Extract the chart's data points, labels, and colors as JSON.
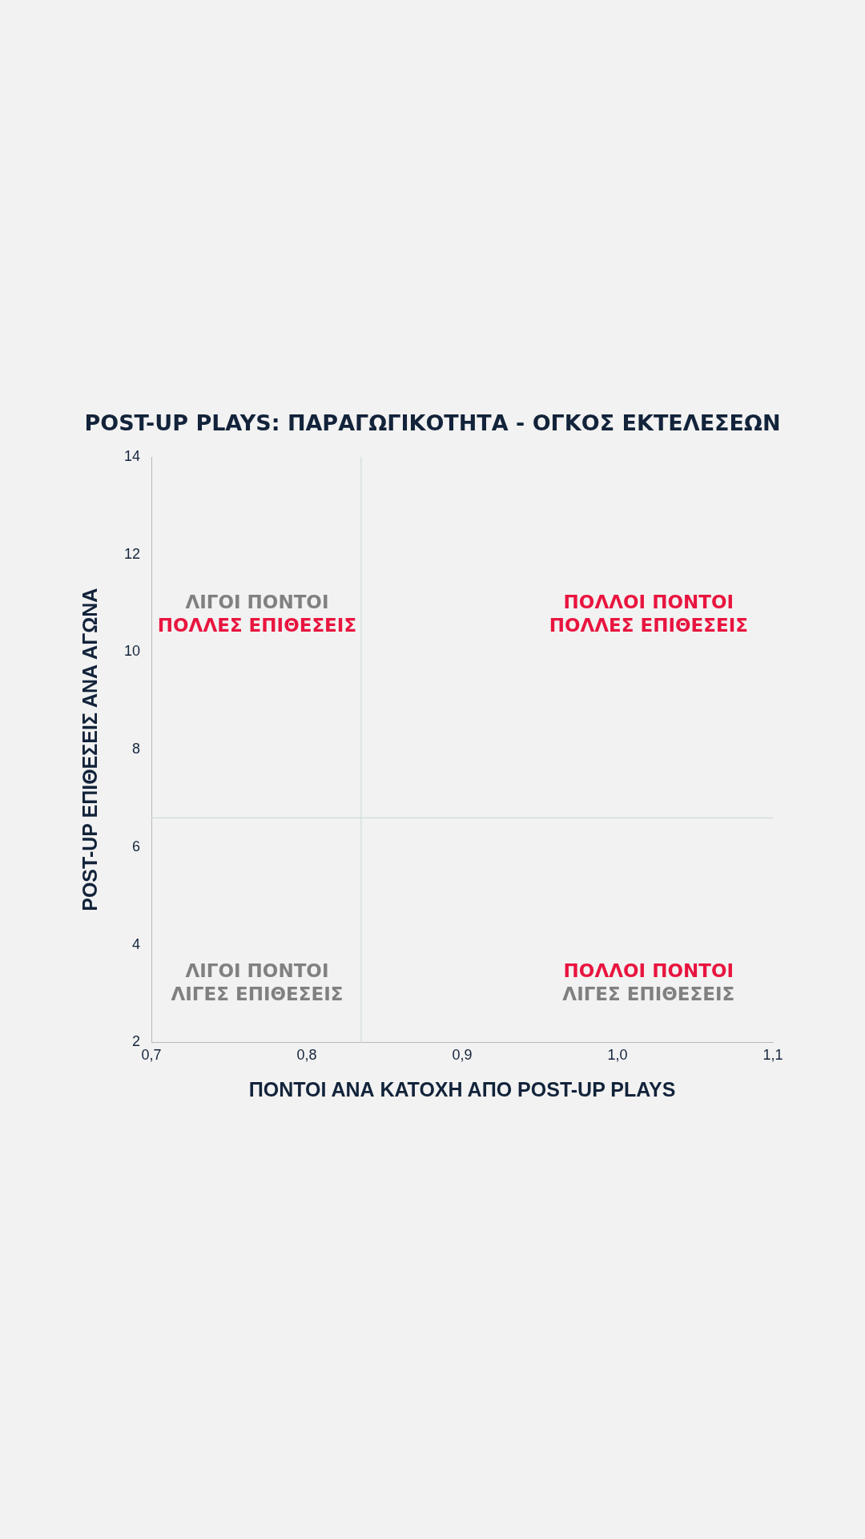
{
  "chart_data": {
    "type": "scatter",
    "title": "POST-UP PLAYS: ΠΑΡΑΓΩΓΙΚΟΤΗΤΑ - ΟΓΚΟΣ ΕΚΤΕΛΕΣΕΩΝ",
    "xlabel": "ΠΟΝΤΟΙ ΑΝΑ ΚΑΤΟΧΗ ΑΠΟ POST-UP PLAYS",
    "ylabel": "POST-UP ΕΠΙΘΕΣΕΙΣ ΑΝΑ ΑΓΩΝΑ",
    "xlim": [
      0.7,
      1.1
    ],
    "xticks": [
      {
        "value": 0.7,
        "label": "0,7"
      },
      {
        "value": 0.8,
        "label": "0,8"
      },
      {
        "value": 0.9,
        "label": "0,9"
      },
      {
        "value": 1.0,
        "label": "1,0"
      },
      {
        "value": 1.1,
        "label": "1,1"
      }
    ],
    "ylim": [
      2,
      14
    ],
    "yticks": [
      2,
      4,
      6,
      8,
      10,
      12,
      14
    ],
    "grid": false,
    "legend": false,
    "ref_lines": [
      {
        "axis": "x",
        "value": 0.835,
        "color": "#cfdcdc"
      },
      {
        "axis": "y",
        "value": 6.6,
        "color": "#cfdcdc"
      }
    ],
    "annotations": [
      "ΛΙΓΟΙ ΠΟΝΤΟΙ",
      "ΠΟΛΛΕΣ ΕΠΙΘΕΣΕΙΣ",
      "ΠΟΛΛΟΙ ΠΟΝΤΟΙ",
      "ΠΟΛΛΕΣ ΕΠΙΘΕΣΕΙΣ",
      "ΛΙΓΟΙ ΠΟΝΤΟΙ",
      "ΛΙΓΕΣ ΕΠΙΘΕΣΕΙΣ",
      "ΠΟΛΛΟΙ ΠΟΝΤΟΙ",
      "ΛΙΓΕΣ ΕΠΙΘΕΣΕΙΣ"
    ]
  }
}
